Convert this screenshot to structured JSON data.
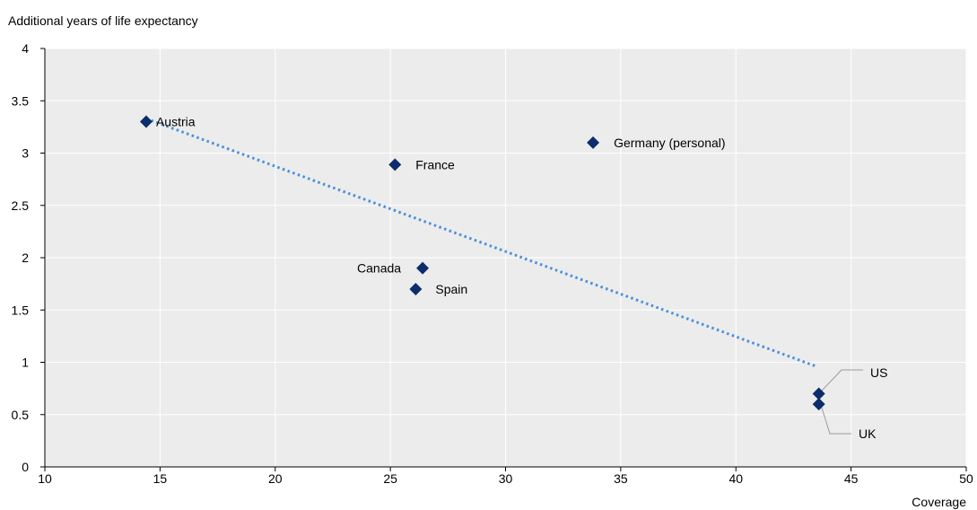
{
  "chart_data": {
    "type": "scatter",
    "title": "",
    "ylabel": "Additional years of  life expectancy",
    "xlabel": "Coverage",
    "xlim": [
      10,
      50
    ],
    "ylim": [
      0,
      4
    ],
    "xticks": [
      "10",
      "15",
      "20",
      "25",
      "30",
      "35",
      "40",
      "45",
      "50"
    ],
    "yticks": [
      "0",
      "0.5",
      "1",
      "1.5",
      "2",
      "2.5",
      "3",
      "3.5",
      "4"
    ],
    "grid": true,
    "points": [
      {
        "label": "Austria",
        "x": 14.4,
        "y": 3.3
      },
      {
        "label": "France",
        "x": 25.2,
        "y": 2.89
      },
      {
        "label": "Germany (personal)",
        "x": 33.8,
        "y": 3.1
      },
      {
        "label": "Canada",
        "x": 26.4,
        "y": 1.9
      },
      {
        "label": "Spain",
        "x": 26.1,
        "y": 1.7
      },
      {
        "label": "US",
        "x": 43.6,
        "y": 0.7
      },
      {
        "label": "UK",
        "x": 43.6,
        "y": 0.6
      }
    ],
    "trendline": {
      "x": [
        14.4,
        43.5
      ],
      "y": [
        3.33,
        0.96
      ],
      "style": "dotted"
    },
    "colors": {
      "marker": "#0b2d6b",
      "trend": "#4a90d9",
      "plot_bg": "#ececec",
      "grid": "#ffffff",
      "leader": "#9a9a9a"
    }
  }
}
